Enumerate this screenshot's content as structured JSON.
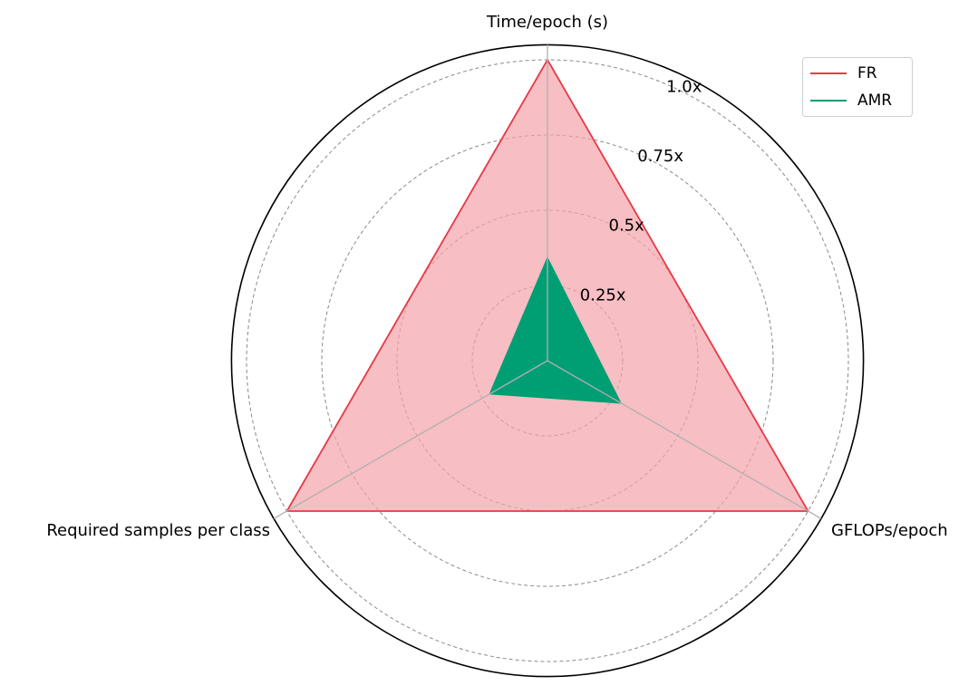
{
  "chart_data": {
    "type": "radar",
    "axes": [
      "Time/epoch (s)",
      "GFLOPs/epoch",
      "Required samples per class"
    ],
    "rlim": [
      0,
      1.05
    ],
    "rticks": [
      0.25,
      0.5,
      0.75,
      1.0
    ],
    "rtick_labels": [
      "0.25x",
      "0.5x",
      "0.75x",
      "1.0x"
    ],
    "grid": true,
    "legend_position": "top-right",
    "series": [
      {
        "name": "FR",
        "values": [
          1.0,
          1.0,
          1.0
        ],
        "color": "#e63946",
        "fill": "#f4a3aa"
      },
      {
        "name": "AMR",
        "values": [
          0.34,
          0.28,
          0.22
        ],
        "color": "#009e73",
        "fill": "#009e73"
      }
    ]
  }
}
